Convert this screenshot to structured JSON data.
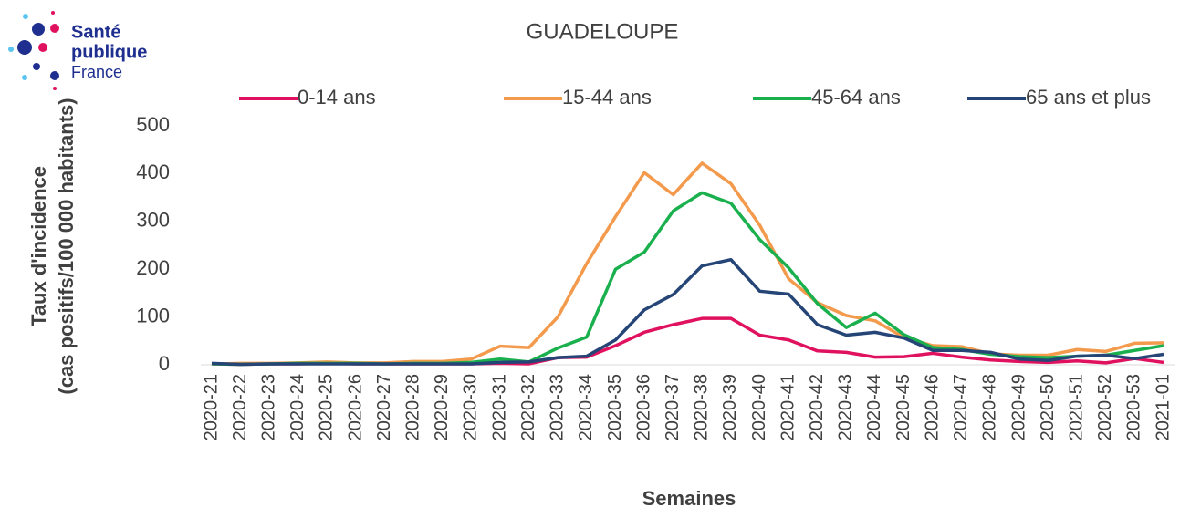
{
  "logo": {
    "lines": [
      "Santé",
      "publique",
      "France"
    ]
  },
  "chart_data": {
    "type": "line",
    "title": "GUADELOUPE",
    "xlabel": "Semaines",
    "ylabel": [
      "Taux d'incidence",
      "(cas positifs/100 000 habitants)"
    ],
    "categories": [
      "2020-21",
      "2020-22",
      "2020-23",
      "2020-24",
      "2020-25",
      "2020-26",
      "2020-27",
      "2020-28",
      "2020-29",
      "2020-30",
      "2020-31",
      "2020-32",
      "2020-33",
      "2020-34",
      "2020-35",
      "2020-36",
      "2020-37",
      "2020-38",
      "2020-39",
      "2020-40",
      "2020-41",
      "2020-42",
      "2020-43",
      "2020-44",
      "2020-45",
      "2020-46",
      "2020-47",
      "2020-48",
      "2020-49",
      "2020-50",
      "2020-51",
      "2020-52",
      "2020-53",
      "2021-01"
    ],
    "series": [
      {
        "name": "0-14 ans",
        "color": "#e0125f",
        "values": [
          2,
          1,
          2,
          2,
          3,
          2,
          2,
          2,
          2,
          2,
          3,
          2,
          15,
          16,
          40,
          68,
          84,
          97,
          97,
          62,
          52,
          29,
          26,
          16,
          17,
          24,
          16,
          10,
          7,
          5,
          8,
          4,
          13,
          5
        ]
      },
      {
        "name": "15-44 ans",
        "color": "#f39a4c",
        "values": [
          2,
          3,
          3,
          4,
          6,
          4,
          4,
          7,
          7,
          12,
          39,
          36,
          100,
          212,
          310,
          402,
          356,
          422,
          379,
          292,
          180,
          130,
          103,
          92,
          57,
          40,
          38,
          23,
          20,
          20,
          32,
          28,
          45,
          46
        ]
      },
      {
        "name": "45-64 ans",
        "color": "#1bb04e",
        "values": [
          2,
          1,
          2,
          3,
          3,
          3,
          2,
          3,
          3,
          5,
          12,
          6,
          35,
          58,
          200,
          236,
          322,
          360,
          338,
          262,
          203,
          128,
          78,
          108,
          63,
          36,
          32,
          22,
          17,
          15,
          18,
          20,
          30,
          40
        ]
      },
      {
        "name": "65 ans et plus",
        "color": "#264577",
        "values": [
          3,
          1,
          2,
          2,
          2,
          2,
          2,
          2,
          2,
          2,
          5,
          6,
          15,
          18,
          52,
          115,
          147,
          207,
          220,
          154,
          148,
          84,
          62,
          68,
          56,
          30,
          30,
          26,
          12,
          9,
          18,
          20,
          13,
          22
        ]
      }
    ],
    "ylim": [
      0,
      500
    ],
    "yticks": [
      0,
      100,
      200,
      300,
      400,
      500
    ],
    "grid": false,
    "legend": "top"
  }
}
